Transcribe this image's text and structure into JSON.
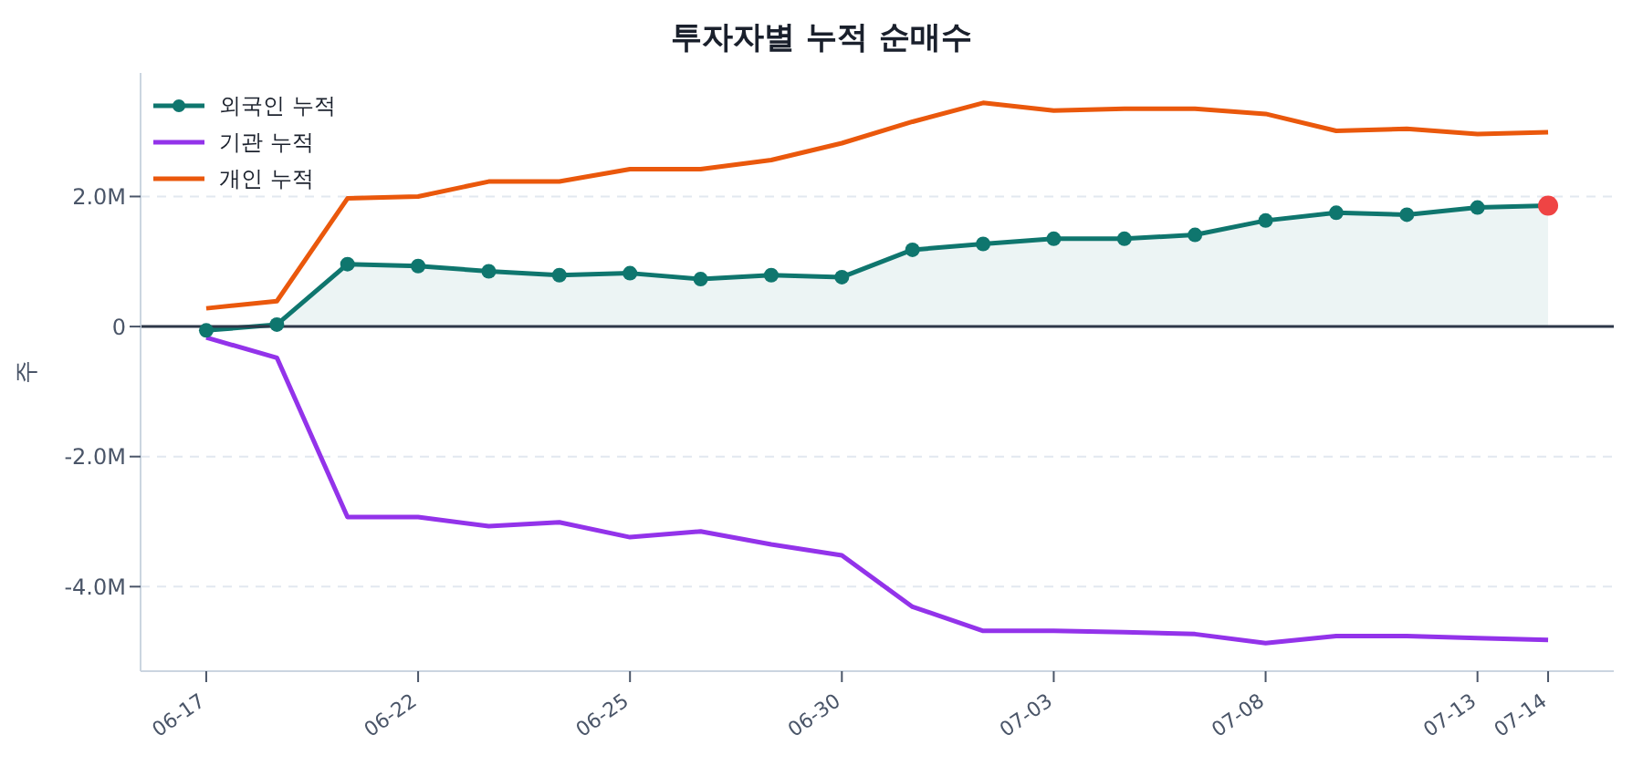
{
  "chart_data": {
    "type": "line",
    "title": "투자자별 누적 순매수",
    "ylabel": "주",
    "categories": [
      "06-17",
      null,
      null,
      "06-22",
      null,
      null,
      "06-25",
      null,
      null,
      "06-30",
      null,
      null,
      "07-03",
      null,
      null,
      "07-08",
      null,
      null,
      "07-13",
      "07-14"
    ],
    "series": [
      {
        "name": "외국인 누적",
        "type": "area",
        "color": "#0f766e",
        "marker": "circle",
        "values": [
          -0.06,
          0.03,
          0.96,
          0.93,
          0.85,
          0.79,
          0.82,
          0.73,
          0.79,
          0.76,
          1.18,
          1.27,
          1.35,
          1.35,
          1.41,
          1.63,
          1.75,
          1.72,
          1.83,
          1.86
        ]
      },
      {
        "name": "기관 누적",
        "color": "#9333ea",
        "marker": "none",
        "values": [
          -0.17,
          -0.48,
          -2.93,
          -2.93,
          -3.07,
          -3.01,
          -3.24,
          -3.15,
          -3.35,
          -3.52,
          -4.31,
          -4.68,
          -4.68,
          -4.7,
          -4.73,
          -4.87,
          -4.76,
          -4.76,
          -4.79,
          -4.82
        ]
      },
      {
        "name": "개인 누적",
        "color": "#ea580c",
        "marker": "none",
        "values": [
          0.28,
          0.39,
          1.97,
          2.0,
          2.23,
          2.23,
          2.42,
          2.42,
          2.56,
          2.82,
          3.15,
          3.44,
          3.32,
          3.35,
          3.35,
          3.27,
          3.01,
          3.04,
          2.96,
          2.99
        ]
      },
      {
        "type": "scatter",
        "color": "#ef4444",
        "x": [
          "07-14"
        ],
        "values": [
          1.86
        ]
      }
    ],
    "ylim": [
      -5.3,
      3.9
    ],
    "yticks": [
      {
        "value": -4,
        "label": "-4.0M"
      },
      {
        "value": -2,
        "label": "-2.0M"
      },
      0,
      {
        "value": 2,
        "label": "2.0M"
      }
    ],
    "ref_lines": [
      {
        "axis": "y",
        "value": 0,
        "color": "#2d3748"
      }
    ],
    "grid": "y",
    "legend": "top left"
  }
}
